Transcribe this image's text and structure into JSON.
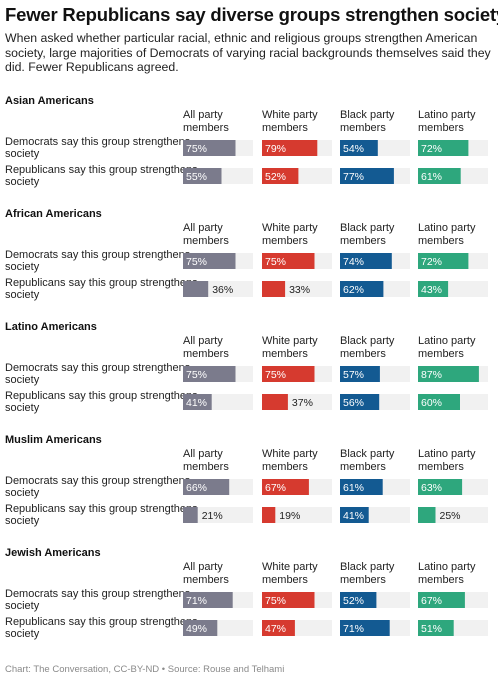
{
  "title": "Fewer Republicans say diverse groups strengthen society",
  "subtitle": "When asked whether particular racial, ethnic and religious groups strengthen American society, large majorities of Democrats of varying racial backgrounds themselves said they did. Fewer Republicans agreed.",
  "footer": "Chart: The Conversation, CC-BY-ND • Source: Rouse and Telhami",
  "colors": {
    "all_party_members": "#7b7b8c",
    "white_party_members": "#d63a2f",
    "black_party_members": "#135a92",
    "latino_party_members": "#2ea77d",
    "track": "#f1f1f1"
  },
  "chart_data": {
    "type": "bar",
    "orientation": "horizontal",
    "value_unit": "%",
    "xlim": [
      0,
      100
    ],
    "columns": [
      [
        "All party",
        "members"
      ],
      [
        "White party",
        "members"
      ],
      [
        "Black party",
        "members"
      ],
      [
        "Latino party",
        "members"
      ]
    ],
    "rows": [
      [
        "Democrats say this group strengthens",
        "society"
      ],
      [
        "Republicans say this group strengthens",
        "society"
      ]
    ],
    "groups": [
      {
        "name": "Asian Americans",
        "values": [
          [
            75,
            79,
            54,
            72
          ],
          [
            55,
            52,
            77,
            61
          ]
        ]
      },
      {
        "name": "African Americans",
        "values": [
          [
            75,
            75,
            74,
            72
          ],
          [
            36,
            33,
            62,
            43
          ]
        ]
      },
      {
        "name": "Latino Americans",
        "values": [
          [
            75,
            75,
            57,
            87
          ],
          [
            41,
            37,
            56,
            60
          ]
        ]
      },
      {
        "name": "Muslim Americans",
        "values": [
          [
            66,
            67,
            61,
            63
          ],
          [
            21,
            19,
            41,
            25
          ]
        ]
      },
      {
        "name": "Jewish Americans",
        "values": [
          [
            71,
            75,
            52,
            67
          ],
          [
            49,
            47,
            71,
            51
          ]
        ]
      }
    ]
  }
}
